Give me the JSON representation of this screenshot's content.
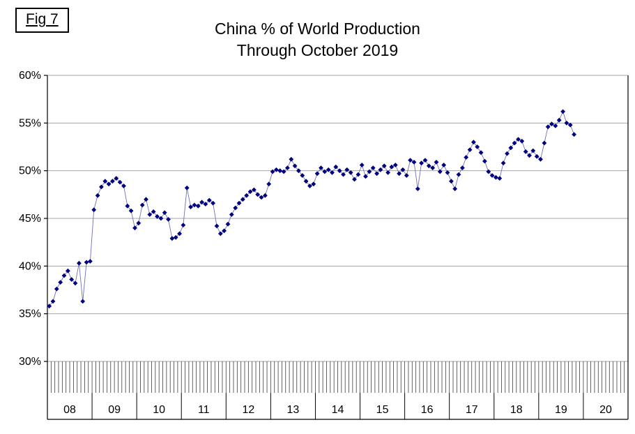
{
  "fig_label": "Fig 7",
  "title_line1": "China % of World Production",
  "title_line2": "Through October 2019",
  "chart_data": {
    "type": "line",
    "title": "China % of World Production Through October 2019",
    "xlabel": "",
    "ylabel": "",
    "ylim": [
      30,
      60
    ],
    "grid": true,
    "legend_position": "none",
    "marker": "diamond",
    "marker_color": "#000080",
    "line_color": "#7070b8",
    "grid_color": "#a6a6a6",
    "y_ticks": [
      30,
      35,
      40,
      45,
      50,
      55,
      60
    ],
    "y_tick_labels": [
      "30%",
      "35%",
      "40%",
      "45%",
      "50%",
      "55%",
      "60%"
    ],
    "x_year_labels": [
      "08",
      "09",
      "10",
      "11",
      "12",
      "13",
      "14",
      "15",
      "16",
      "17",
      "18",
      "19",
      "20"
    ],
    "units": "percent of world production, monthly",
    "series_by_year": [
      {
        "year": "08",
        "values": [
          35.8,
          36.3,
          37.6,
          38.3,
          39.0,
          39.5,
          38.6,
          38.2,
          40.3,
          36.3,
          40.4,
          40.5
        ]
      },
      {
        "year": "09",
        "values": [
          45.9,
          47.4,
          48.3,
          48.9,
          48.6,
          48.9,
          49.2,
          48.8,
          48.4,
          46.3,
          45.8,
          44.0
        ]
      },
      {
        "year": "10",
        "values": [
          44.5,
          46.4,
          47.0,
          45.4,
          45.7,
          45.2,
          45.0,
          45.6,
          44.9,
          42.9,
          43.0,
          43.4
        ]
      },
      {
        "year": "11",
        "values": [
          44.3,
          48.2,
          46.2,
          46.4,
          46.3,
          46.7,
          46.5,
          46.9,
          46.6,
          44.2,
          43.4,
          43.7
        ]
      },
      {
        "year": "12",
        "values": [
          44.4,
          45.4,
          46.1,
          46.6,
          47.0,
          47.4,
          47.8,
          48.0,
          47.5,
          47.2,
          47.4,
          48.6
        ]
      },
      {
        "year": "13",
        "values": [
          49.9,
          50.1,
          50.0,
          49.9,
          50.3,
          51.2,
          50.5,
          50.0,
          49.5,
          48.9,
          48.4,
          48.6
        ]
      },
      {
        "year": "14",
        "values": [
          49.7,
          50.3,
          49.9,
          50.1,
          49.8,
          50.4,
          50.0,
          49.6,
          50.1,
          49.8,
          49.1,
          49.6
        ]
      },
      {
        "year": "15",
        "values": [
          50.6,
          49.4,
          49.9,
          50.3,
          49.7,
          50.1,
          50.5,
          49.8,
          50.4,
          50.6,
          49.7,
          50.1
        ]
      },
      {
        "year": "16",
        "values": [
          49.5,
          51.1,
          50.9,
          48.1,
          50.8,
          51.1,
          50.5,
          50.3,
          50.9,
          49.9,
          50.6,
          49.8
        ]
      },
      {
        "year": "17",
        "values": [
          48.9,
          48.1,
          49.6,
          50.3,
          51.4,
          52.2,
          53.0,
          52.5,
          51.9,
          51.0,
          49.9,
          49.5
        ]
      },
      {
        "year": "18",
        "values": [
          49.3,
          49.2,
          50.8,
          51.8,
          52.4,
          52.9,
          53.3,
          53.1,
          52.0,
          51.6,
          52.1,
          51.5
        ]
      },
      {
        "year": "19",
        "values": [
          51.2,
          52.9,
          54.6,
          54.9,
          54.7,
          55.3,
          56.2,
          55.0,
          54.8,
          53.8
        ]
      }
    ]
  }
}
